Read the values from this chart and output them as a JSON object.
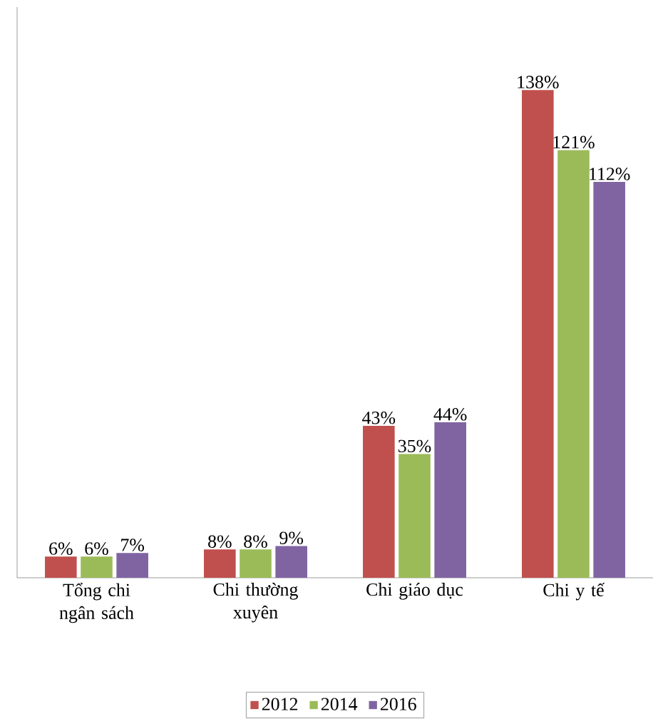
{
  "chart_data": {
    "type": "bar",
    "categories": [
      "Tổng chi ngân sách",
      "Chi thường xuyên",
      "Chi giáo dục",
      "Chi y tế"
    ],
    "series": [
      {
        "name": "2012",
        "color": "#c0504d",
        "values": [
          6,
          8,
          43,
          138
        ],
        "value_labels": [
          "6%",
          "8%",
          "43%",
          "138%"
        ]
      },
      {
        "name": "2014",
        "color": "#9bbb59",
        "values": [
          6,
          8,
          35,
          121
        ],
        "value_labels": [
          "6%",
          "8%",
          "35%",
          "121%"
        ]
      },
      {
        "name": "2016",
        "color": "#8064a2",
        "values": [
          7,
          9,
          44,
          112
        ],
        "value_labels": [
          "7%",
          "9%",
          "44%",
          "112%"
        ]
      }
    ],
    "legend": "bottom"
  }
}
